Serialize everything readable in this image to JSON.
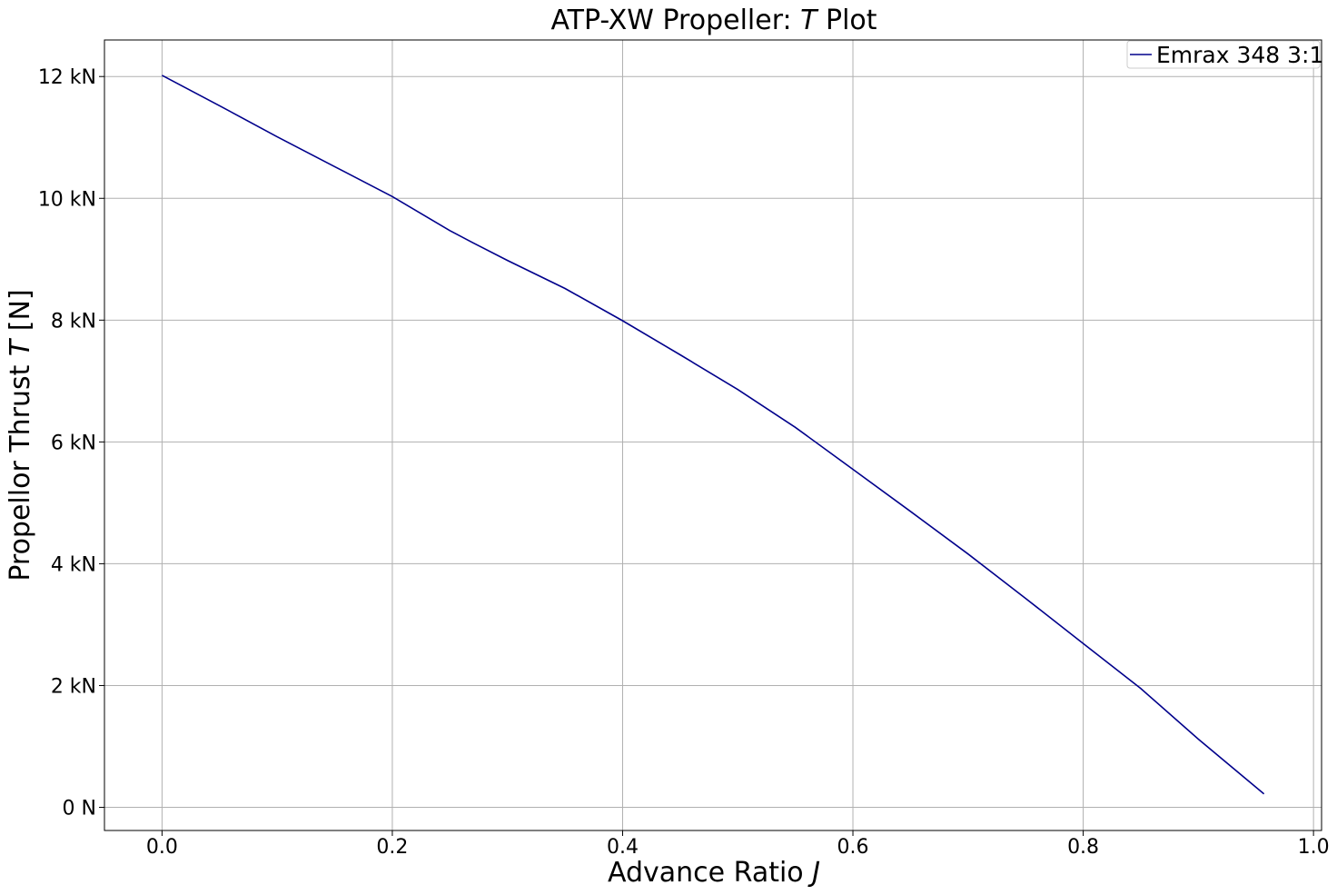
{
  "chart_data": {
    "type": "line",
    "title_prefix": "ATP-XW Propeller: ",
    "title_italic": "T",
    "title_suffix": " Plot",
    "xlabel_prefix": "Advance Ratio ",
    "xlabel_italic": "J",
    "ylabel_prefix": "Propellor Thrust ",
    "ylabel_italic": "T",
    "ylabel_suffix": " [N]",
    "xlim": [
      -0.05,
      1.007
    ],
    "ylim": [
      -0.38,
      12.6
    ],
    "x_ticks": [
      0.0,
      0.2,
      0.4,
      0.6,
      0.8,
      1.0
    ],
    "x_tick_labels": [
      "0.0",
      "0.2",
      "0.4",
      "0.6",
      "0.8",
      "1.0"
    ],
    "y_ticks": [
      0,
      2,
      4,
      6,
      8,
      10,
      12
    ],
    "y_tick_labels": [
      "0 N",
      "2 kN",
      "4 kN",
      "6 kN",
      "8 kN",
      "10 kN",
      "12 kN"
    ],
    "y_unit": "kN",
    "grid": true,
    "legend_position": "upper-right",
    "series": [
      {
        "name": "Emrax 348 3:1",
        "color": "#00008b",
        "x": [
          0.0,
          0.05,
          0.1,
          0.15,
          0.2,
          0.25,
          0.27,
          0.3,
          0.35,
          0.4,
          0.45,
          0.5,
          0.55,
          0.6,
          0.65,
          0.7,
          0.75,
          0.8,
          0.85,
          0.9,
          0.957
        ],
        "y": [
          12.02,
          11.52,
          11.01,
          10.52,
          10.03,
          9.47,
          9.27,
          8.98,
          8.52,
          7.99,
          7.43,
          6.86,
          6.24,
          5.55,
          4.86,
          4.16,
          3.43,
          2.69,
          1.95,
          1.12,
          0.22
        ]
      }
    ]
  }
}
